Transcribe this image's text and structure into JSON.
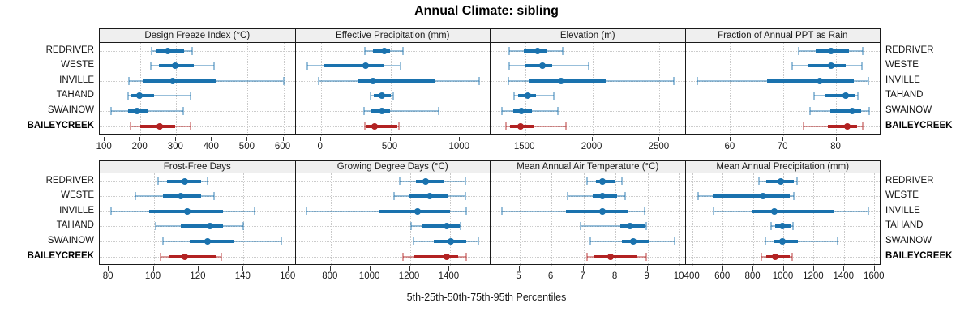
{
  "title": "Annual Climate: sibling",
  "caption": "5th-25th-50th-75th-95th Percentiles",
  "colors": {
    "series_blue": "#1a72ae",
    "series_blue_light": "rgba(26,114,174,0.45)",
    "series_red": "#b22222",
    "series_red_light": "rgba(178,34,34,0.45)",
    "strip_background": "#efefef",
    "panel_border": "#1a1a1a",
    "grid": "#c9c9c9",
    "tick": "#333333"
  },
  "chart_data": {
    "type": "dotplot-interval",
    "statistic_labels": [
      "5th",
      "25th",
      "50th",
      "75th",
      "95th"
    ],
    "grid": "dotted",
    "legend_position": "none",
    "layout": {
      "rows": 2,
      "cols": 4
    },
    "groups": [
      "REDRIVER",
      "WESTE",
      "INVILLE",
      "TAHAND",
      "SWAINOW",
      "BAILEYCREEK"
    ],
    "highlight_group": "BAILEYCREEK",
    "panels": [
      {
        "title": "Design Freeze Index (°C)",
        "xlim": [
          86,
          633
        ],
        "ticks": [
          100,
          200,
          300,
          400,
          500,
          600
        ],
        "series": [
          {
            "name": "REDRIVER",
            "percentiles": [
              232,
              245,
              277,
              322,
              345
            ]
          },
          {
            "name": "WESTE",
            "percentiles": [
              230,
              251,
              296,
              350,
              407
            ]
          },
          {
            "name": "INVILLE",
            "percentiles": [
              168,
              207,
              290,
              411,
              600
            ]
          },
          {
            "name": "TAHAND",
            "percentiles": [
              166,
              173,
              198,
              238,
              340
            ]
          },
          {
            "name": "SWAINOW",
            "percentiles": [
              118,
              166,
              190,
              219,
              320
            ]
          },
          {
            "name": "BAILEYCREEK",
            "percentiles": [
              173,
              200,
              254,
              298,
              341
            ]
          }
        ]
      },
      {
        "title": "Effective Precipitation (mm)",
        "xlim": [
          -185,
          1220
        ],
        "ticks": [
          0,
          500,
          1000
        ],
        "series": [
          {
            "name": "REDRIVER",
            "percentiles": [
              316,
              370,
              455,
              492,
              586
            ]
          },
          {
            "name": "WESTE",
            "percentiles": [
              -103,
              20,
              320,
              447,
              567
            ]
          },
          {
            "name": "INVILLE",
            "percentiles": [
              -20,
              262,
              373,
              816,
              1136
            ]
          },
          {
            "name": "TAHAND",
            "percentiles": [
              353,
              380,
              437,
              500,
              515
            ]
          },
          {
            "name": "SWAINOW",
            "percentiles": [
              307,
              359,
              433,
              495,
              845
            ]
          },
          {
            "name": "BAILEYCREEK",
            "percentiles": [
              313,
              325,
              385,
              545,
              560
            ]
          }
        ]
      },
      {
        "title": "Elevation (m)",
        "xlim": [
          1242,
          2697
        ],
        "ticks": [
          1500,
          2000,
          2500
        ],
        "series": [
          {
            "name": "REDRIVER",
            "percentiles": [
              1379,
              1490,
              1590,
              1661,
              1778
            ]
          },
          {
            "name": "WESTE",
            "percentiles": [
              1383,
              1500,
              1627,
              1701,
              1973
            ]
          },
          {
            "name": "INVILLE",
            "percentiles": [
              1375,
              1530,
              1766,
              2098,
              2607
            ]
          },
          {
            "name": "TAHAND",
            "percentiles": [
              1415,
              1449,
              1520,
              1580,
              1711
            ]
          },
          {
            "name": "SWAINOW",
            "percentiles": [
              1329,
              1409,
              1470,
              1550,
              1745
            ]
          },
          {
            "name": "BAILEYCREEK",
            "percentiles": [
              1359,
              1389,
              1466,
              1560,
              1806
            ]
          }
        ]
      },
      {
        "title": "Fraction of Annual PPT as Rain",
        "xlim": [
          51.6,
          88.5
        ],
        "ticks": [
          60,
          70,
          80
        ],
        "series": [
          {
            "name": "REDRIVER",
            "percentiles": [
              73.0,
              76.1,
              79.0,
              82.4,
              85.1
            ]
          },
          {
            "name": "WESTE",
            "percentiles": [
              71.8,
              74.8,
              79.0,
              81.9,
              84.9
            ]
          },
          {
            "name": "INVILLE",
            "percentiles": [
              53.8,
              67.0,
              77.0,
              83.3,
              86.1
            ]
          },
          {
            "name": "TAHAND",
            "percentiles": [
              75.8,
              77.9,
              81.9,
              83.5,
              84.2
            ]
          },
          {
            "name": "SWAINOW",
            "percentiles": [
              75.1,
              78.9,
              83.1,
              84.8,
              86.2
            ]
          },
          {
            "name": "BAILEYCREEK",
            "percentiles": [
              73.9,
              78.4,
              82.2,
              84.0,
              85.1
            ]
          }
        ]
      },
      {
        "title": "Frost-Free Days",
        "xlim": [
          76,
          163
        ],
        "ticks": [
          80,
          100,
          120,
          140,
          160
        ],
        "series": [
          {
            "name": "REDRIVER",
            "percentiles": [
              102,
              106,
              114,
              121,
              124
            ]
          },
          {
            "name": "WESTE",
            "percentiles": [
              92,
              104,
              112,
              121,
              127
            ]
          },
          {
            "name": "INVILLE",
            "percentiles": [
              81,
              98,
              115,
              131,
              145
            ]
          },
          {
            "name": "TAHAND",
            "percentiles": [
              101,
              112,
              125,
              131,
              140
            ]
          },
          {
            "name": "SWAINOW",
            "percentiles": [
              104,
              116,
              124,
              136,
              157
            ]
          },
          {
            "name": "BAILEYCREEK",
            "percentiles": [
              103,
              107,
              114,
              128,
              130
            ]
          }
        ]
      },
      {
        "title": "Growing Degree Days (°C)",
        "xlim": [
          621,
          1607
        ],
        "ticks": [
          800,
          1000,
          1200,
          1400
        ],
        "series": [
          {
            "name": "REDRIVER",
            "percentiles": [
              1148,
              1230,
              1277,
              1366,
              1478
            ]
          },
          {
            "name": "WESTE",
            "percentiles": [
              1116,
              1195,
              1298,
              1387,
              1478
            ]
          },
          {
            "name": "INVILLE",
            "percentiles": [
              677,
              1039,
              1236,
              1400,
              1482
            ]
          },
          {
            "name": "TAHAND",
            "percentiles": [
              1205,
              1257,
              1383,
              1448,
              1455
            ]
          },
          {
            "name": "SWAINOW",
            "percentiles": [
              1216,
              1318,
              1404,
              1482,
              1543
            ]
          },
          {
            "name": "BAILEYCREEK",
            "percentiles": [
              1164,
              1216,
              1383,
              1441,
              1482
            ]
          }
        ]
      },
      {
        "title": "Mean Annual Air Temperature (°C)",
        "xlim": [
          4.1,
          10.2
        ],
        "ticks": [
          5,
          6,
          7,
          8,
          9,
          10
        ],
        "series": [
          {
            "name": "REDRIVER",
            "percentiles": [
              7.1,
              7.4,
              7.6,
              8.0,
              8.2
            ]
          },
          {
            "name": "WESTE",
            "percentiles": [
              6.5,
              7.3,
              7.6,
              8.05,
              8.3
            ]
          },
          {
            "name": "INVILLE",
            "percentiles": [
              4.45,
              6.45,
              7.6,
              8.4,
              8.9
            ]
          },
          {
            "name": "TAHAND",
            "percentiles": [
              6.9,
              8.15,
              8.45,
              8.9,
              8.95
            ]
          },
          {
            "name": "SWAINOW",
            "percentiles": [
              7.2,
              8.2,
              8.55,
              9.05,
              9.85
            ]
          },
          {
            "name": "BAILEYCREEK",
            "percentiles": [
              7.1,
              7.35,
              7.85,
              8.65,
              8.95
            ]
          }
        ]
      },
      {
        "title": "Mean Annual Precipitation (mm)",
        "xlim": [
          356,
          1644
        ],
        "ticks": [
          400,
          600,
          800,
          1000,
          1200,
          1400,
          1600
        ],
        "series": [
          {
            "name": "REDRIVER",
            "percentiles": [
              837,
              890,
              985,
              1070,
              1090
            ]
          },
          {
            "name": "WESTE",
            "percentiles": [
              436,
              534,
              864,
              1042,
              1068
            ]
          },
          {
            "name": "INVILLE",
            "percentiles": [
              539,
              793,
              940,
              1336,
              1563
            ]
          },
          {
            "name": "TAHAND",
            "percentiles": [
              917,
              944,
              994,
              1051,
              1065
            ]
          },
          {
            "name": "SWAINOW",
            "percentiles": [
              881,
              935,
              992,
              1095,
              1359
            ]
          },
          {
            "name": "BAILEYCREEK",
            "percentiles": [
              858,
              890,
              944,
              1042,
              1060
            ]
          }
        ]
      }
    ]
  }
}
